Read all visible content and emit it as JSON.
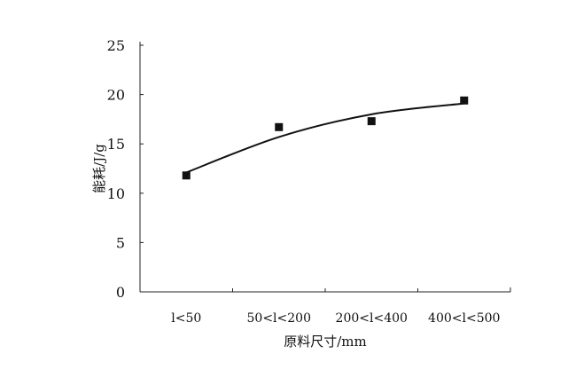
{
  "chart_data": {
    "type": "scatter",
    "title": "",
    "xlabel": "原料尺寸/mm",
    "ylabel": "能耗/J/g",
    "categories": [
      "l<50",
      "50<l<200",
      "200<l<400",
      "400<l<500"
    ],
    "series": [
      {
        "kind": "points",
        "marker": "square",
        "values": [
          11.8,
          16.7,
          17.3,
          19.4
        ]
      },
      {
        "kind": "trend-line",
        "values": [
          12.1,
          15.7,
          18.0,
          19.1
        ]
      }
    ],
    "ylim": [
      0,
      25
    ],
    "yticks": [
      0,
      5,
      10,
      15,
      20,
      25
    ],
    "grid": false,
    "colors": {
      "marks": "#111111"
    }
  }
}
